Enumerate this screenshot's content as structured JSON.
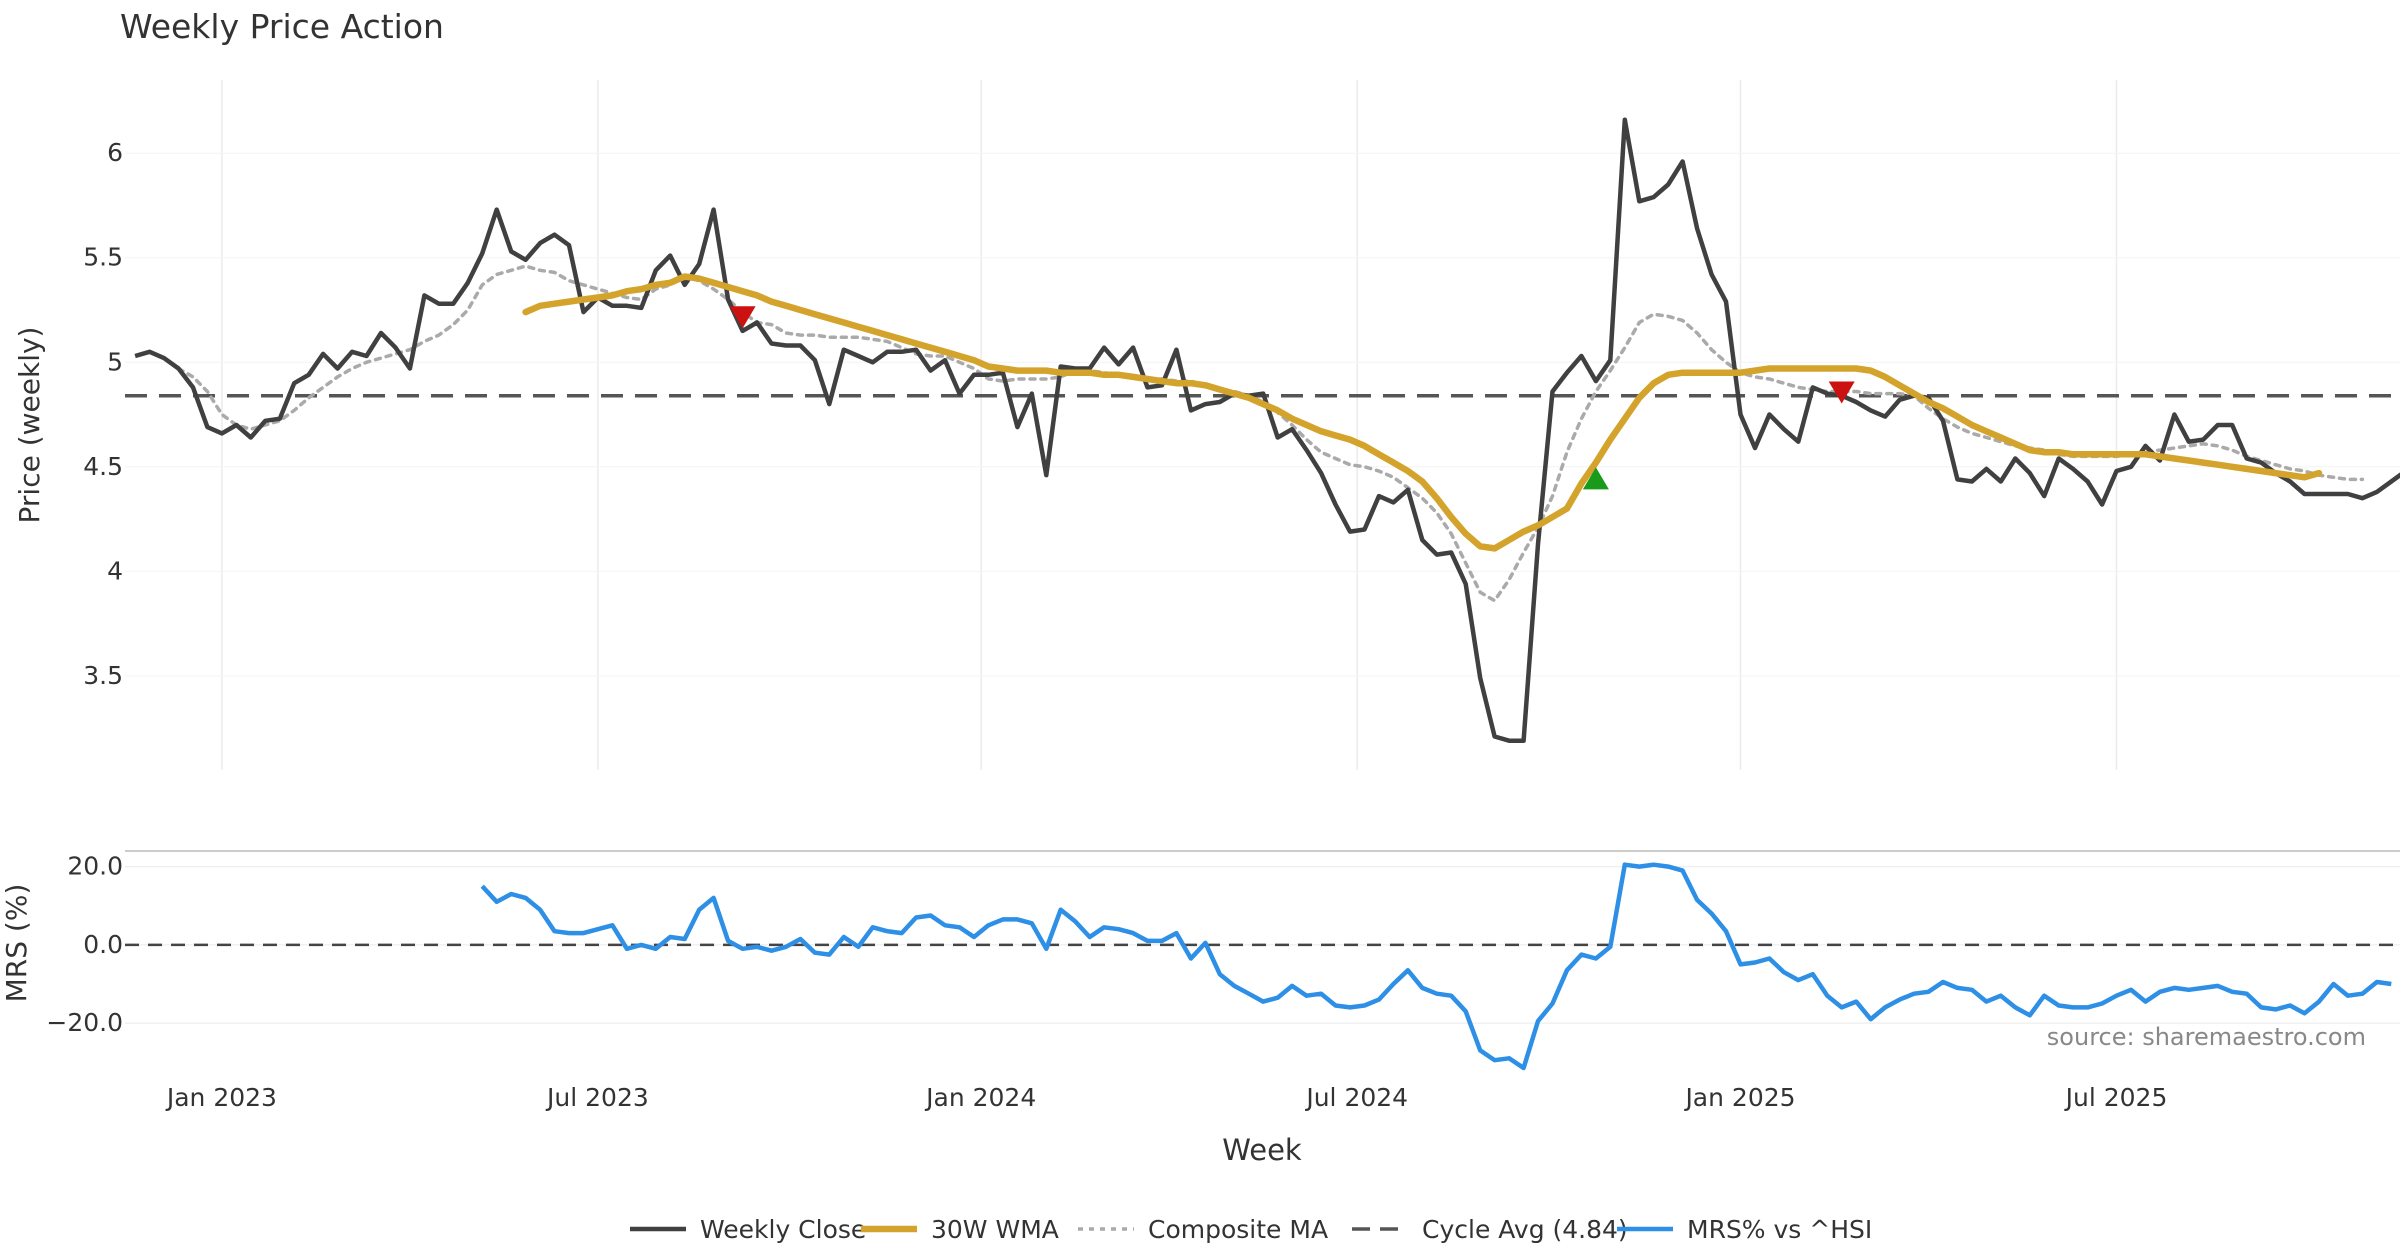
{
  "chart_data": {
    "type": "line",
    "title": "Weekly Price Action",
    "xlabel": "Week",
    "source": "source: sharemaestro.com",
    "colors": {
      "close": "#404040",
      "wma": "#d4a32b",
      "composite": "#aaaaaa",
      "cycle": "#555555",
      "mrs": "#2e8fe6",
      "down_marker": "#cc1111",
      "up_marker": "#1a9a1a"
    },
    "x_ticks": [
      {
        "label": "Jan 2023",
        "t": 4
      },
      {
        "label": "Jul 2023",
        "t": 30
      },
      {
        "label": "Jan 2024",
        "t": 56.5
      },
      {
        "label": "Jul 2024",
        "t": 82.5
      },
      {
        "label": "Jan 2025",
        "t": 109
      },
      {
        "label": "Jul 2025",
        "t": 135
      }
    ],
    "xlim": [
      -2.7,
      154.6
    ],
    "price_panel": {
      "ylabel": "Price (weekly)",
      "ylim": [
        3.05,
        6.35
      ],
      "yticks": [
        3.5,
        4,
        4.5,
        5,
        5.5,
        6
      ],
      "ytick_labels": [
        "3.5",
        "4",
        "4.5",
        "5",
        "5.5",
        "6"
      ],
      "series": [
        {
          "name": "Weekly Close",
          "key": "close",
          "start_week": -2,
          "values": [
            5.03,
            5.05,
            5.02,
            4.97,
            4.88,
            4.69,
            4.66,
            4.7,
            4.64,
            4.72,
            4.73,
            4.9,
            4.94,
            5.04,
            4.97,
            5.05,
            5.03,
            5.14,
            5.07,
            4.97,
            5.32,
            5.28,
            5.28,
            5.38,
            5.52,
            5.73,
            5.53,
            5.49,
            5.57,
            5.61,
            5.56,
            5.24,
            5.31,
            5.27,
            5.27,
            5.26,
            5.44,
            5.51,
            5.37,
            5.47,
            5.73,
            5.3,
            5.15,
            5.19,
            5.09,
            5.08,
            5.08,
            5.01,
            4.8,
            5.06,
            5.03,
            5.0,
            5.05,
            5.05,
            5.06,
            4.96,
            5.01,
            4.85,
            4.94,
            4.94,
            4.95,
            4.69,
            4.85,
            4.46,
            4.98,
            4.97,
            4.97,
            5.07,
            4.99,
            5.07,
            4.88,
            4.89,
            5.06,
            4.77,
            4.8,
            4.81,
            4.85,
            4.84,
            4.85,
            4.64,
            4.68,
            4.58,
            4.47,
            4.32,
            4.19,
            4.2,
            4.36,
            4.33,
            4.39,
            4.15,
            4.08,
            4.09,
            3.94,
            3.49,
            3.21,
            3.19,
            3.19,
            4.13,
            4.86,
            4.95,
            5.03,
            4.91,
            5.01,
            6.16,
            5.77,
            5.79,
            5.85,
            5.96,
            5.64,
            5.42,
            5.29,
            4.75,
            4.59,
            4.75,
            4.68,
            4.62,
            4.88,
            4.85,
            4.84,
            4.81,
            4.77,
            4.74,
            4.82,
            4.84,
            4.83,
            4.72,
            4.44,
            4.43,
            4.49,
            4.43,
            4.54,
            4.47,
            4.36,
            4.54,
            4.49,
            4.43,
            4.32,
            4.48,
            4.5,
            4.6,
            4.53,
            4.75,
            4.62,
            4.63,
            4.7,
            4.7,
            4.54,
            4.52,
            4.47,
            4.43,
            4.37,
            4.37,
            4.37,
            4.37,
            4.35,
            4.38,
            4.43,
            4.48
          ]
        },
        {
          "name": "30W WMA",
          "key": "wma",
          "start_week": 25,
          "values": [
            5.24,
            5.27,
            5.28,
            5.29,
            5.3,
            5.31,
            5.32,
            5.34,
            5.35,
            5.37,
            5.38,
            5.41,
            5.4,
            5.38,
            5.36,
            5.34,
            5.32,
            5.29,
            5.27,
            5.25,
            5.23,
            5.21,
            5.19,
            5.17,
            5.15,
            5.13,
            5.11,
            5.09,
            5.07,
            5.05,
            5.03,
            5.01,
            4.98,
            4.97,
            4.96,
            4.96,
            4.96,
            4.95,
            4.95,
            4.95,
            4.94,
            4.94,
            4.93,
            4.92,
            4.91,
            4.9,
            4.9,
            4.89,
            4.87,
            4.85,
            4.83,
            4.8,
            4.77,
            4.73,
            4.7,
            4.67,
            4.65,
            4.63,
            4.6,
            4.56,
            4.52,
            4.48,
            4.43,
            4.35,
            4.26,
            4.18,
            4.12,
            4.11,
            4.15,
            4.19,
            4.22,
            4.26,
            4.3,
            4.42,
            4.52,
            4.63,
            4.73,
            4.83,
            4.9,
            4.94,
            4.95,
            4.95,
            4.95,
            4.95,
            4.95,
            4.96,
            4.97,
            4.97,
            4.97,
            4.97,
            4.97,
            4.97,
            4.97,
            4.96,
            4.93,
            4.89,
            4.85,
            4.81,
            4.78,
            4.74,
            4.7,
            4.67,
            4.64,
            4.61,
            4.58,
            4.57,
            4.57,
            4.56,
            4.56,
            4.56,
            4.56,
            4.56,
            4.56,
            4.55,
            4.54,
            4.53,
            4.52,
            4.51,
            4.5,
            4.49,
            4.48,
            4.47,
            4.46,
            4.45,
            4.47
          ]
        },
        {
          "name": "Composite MA",
          "key": "composite",
          "start_week": 1,
          "values": [
            4.97,
            4.93,
            4.86,
            4.75,
            4.7,
            4.68,
            4.7,
            4.72,
            4.77,
            4.83,
            4.88,
            4.93,
            4.97,
            5.0,
            5.02,
            5.04,
            5.06,
            5.1,
            5.13,
            5.18,
            5.25,
            5.37,
            5.42,
            5.44,
            5.46,
            5.44,
            5.43,
            5.39,
            5.37,
            5.35,
            5.33,
            5.31,
            5.3,
            5.35,
            5.37,
            5.41,
            5.39,
            5.35,
            5.3,
            5.24,
            5.19,
            5.18,
            5.14,
            5.13,
            5.13,
            5.12,
            5.12,
            5.12,
            5.11,
            5.1,
            5.07,
            5.04,
            5.03,
            5.03,
            5.0,
            4.97,
            4.92,
            4.91,
            4.92,
            4.92,
            4.92,
            4.93,
            4.96,
            4.96,
            4.95,
            4.94,
            4.93,
            4.92,
            4.92,
            4.91,
            4.91,
            4.89,
            4.87,
            4.86,
            4.84,
            4.81,
            4.76,
            4.7,
            4.63,
            4.57,
            4.54,
            4.51,
            4.5,
            4.48,
            4.45,
            4.4,
            4.35,
            4.28,
            4.18,
            4.04,
            3.9,
            3.86,
            3.96,
            4.09,
            4.21,
            4.36,
            4.57,
            4.73,
            4.86,
            4.96,
            5.07,
            5.19,
            5.23,
            5.22,
            5.2,
            5.14,
            5.06,
            5.0,
            4.95,
            4.93,
            4.92,
            4.9,
            4.88,
            4.87,
            4.86,
            4.86,
            4.86,
            4.85,
            4.85,
            4.85,
            4.84,
            4.78,
            4.73,
            4.69,
            4.66,
            4.64,
            4.62,
            4.6,
            4.59,
            4.58,
            4.56,
            4.55,
            4.55,
            4.55,
            4.55,
            4.56,
            4.57,
            4.58,
            4.59,
            4.6,
            4.61,
            4.6,
            4.58,
            4.55,
            4.53,
            4.51,
            4.49,
            4.48,
            4.46,
            4.45,
            4.44,
            4.44
          ]
        }
      ],
      "reference_line": {
        "name": "Cycle Avg (4.84)",
        "value": 4.84
      },
      "markers": [
        {
          "type": "sell",
          "week": 40,
          "value": 5.22
        },
        {
          "type": "buy",
          "week": 99,
          "value": 4.44
        },
        {
          "type": "sell",
          "week": 116,
          "value": 4.86
        }
      ]
    },
    "mrs_panel": {
      "ylabel": "MRS (%)",
      "ylim": [
        -32,
        24
      ],
      "yticks": [
        -20,
        0,
        20
      ],
      "ytick_labels": [
        "−20.0",
        "0.0",
        "20.0"
      ],
      "reference_value": 0,
      "series": {
        "name": "MRS% vs ^HSI",
        "start_week": 22,
        "values": [
          15.0,
          11.0,
          13.0,
          12.0,
          9.0,
          3.5,
          3.0,
          3.0,
          4.0,
          5.0,
          -1.0,
          0.0,
          -1.0,
          2.0,
          1.5,
          9.0,
          12.0,
          1.0,
          -1.0,
          -0.5,
          -1.5,
          -0.5,
          1.5,
          -2.0,
          -2.5,
          2.0,
          -0.5,
          4.5,
          3.5,
          3.0,
          7.0,
          7.5,
          5.0,
          4.5,
          2.0,
          5.0,
          6.5,
          6.5,
          5.5,
          -1.0,
          9.0,
          6.0,
          2.0,
          4.5,
          4.0,
          3.0,
          1.0,
          1.0,
          3.0,
          -3.5,
          0.5,
          -7.5,
          -10.5,
          -12.5,
          -14.5,
          -13.5,
          -10.5,
          -13.0,
          -12.5,
          -15.5,
          -16.0,
          -15.5,
          -14.0,
          -10.0,
          -6.5,
          -11.0,
          -12.5,
          -13.0,
          -17.0,
          -27.0,
          -29.5,
          -29.0,
          -31.5,
          -19.5,
          -15.0,
          -6.5,
          -2.5,
          -3.5,
          -0.5,
          20.5,
          20.0,
          20.5,
          20.0,
          19.0,
          11.5,
          8.0,
          3.5,
          -5.0,
          -4.5,
          -3.5,
          -7.0,
          -9.0,
          -7.5,
          -13.0,
          -16.0,
          -14.5,
          -19.0,
          -16.0,
          -14.0,
          -12.5,
          -12.0,
          -9.5,
          -11.0,
          -11.5,
          -14.5,
          -13.0,
          -16.0,
          -18.0,
          -13.0,
          -15.5,
          -16.0,
          -16.0,
          -15.0,
          -13.0,
          -11.5,
          -14.5,
          -12.0,
          -11.0,
          -11.5,
          -11.0,
          -10.5,
          -12.0,
          -12.5,
          -16.0,
          -16.5,
          -15.5,
          -17.5,
          -14.5,
          -10.0,
          -13.0,
          -12.5,
          -9.5,
          -10.0
        ]
      }
    },
    "legend": [
      {
        "label": "Weekly Close",
        "style": "solid",
        "key": "close"
      },
      {
        "label": "30W WMA",
        "style": "thick",
        "key": "wma"
      },
      {
        "label": "Composite MA",
        "style": "dotted",
        "key": "composite"
      },
      {
        "label": "Cycle Avg (4.84)",
        "style": "dashed",
        "key": "cycle"
      },
      {
        "label": "MRS% vs ^HSI",
        "style": "solid",
        "key": "mrs"
      }
    ]
  }
}
